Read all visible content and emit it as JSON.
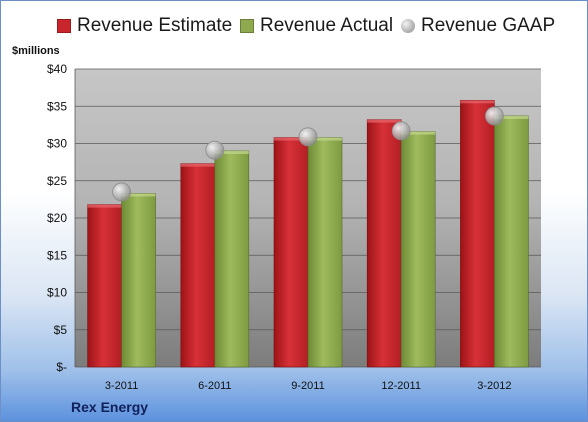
{
  "legend": {
    "estimate": "Revenue Estimate",
    "actual": "Revenue Actual",
    "gaap": "Revenue GAAP"
  },
  "ylabel": "$millions",
  "company": "Rex Energy",
  "colors": {
    "estimate": "#c8262c",
    "actual": "#8faa4e",
    "gaap": "#b5b5b5"
  },
  "chart_data": {
    "type": "bar",
    "categories": [
      "3-2011",
      "6-2011",
      "9-2011",
      "12-2011",
      "3-2012"
    ],
    "series": [
      {
        "name": "Revenue Estimate",
        "values": [
          21.8,
          27.3,
          30.8,
          33.2,
          35.8
        ]
      },
      {
        "name": "Revenue Actual",
        "values": [
          23.3,
          29.0,
          30.8,
          31.6,
          33.7
        ]
      },
      {
        "name": "Revenue GAAP",
        "values": [
          23.5,
          29.1,
          30.9,
          31.7,
          33.7
        ],
        "style": "marker"
      }
    ],
    "ylabel": "$millions",
    "ylim": [
      0,
      40
    ],
    "yticks": [
      0,
      5,
      10,
      15,
      20,
      25,
      30,
      35,
      40
    ],
    "ytick_labels": [
      "$-",
      "$5",
      "$10",
      "$15",
      "$20",
      "$25",
      "$30",
      "$35",
      "$40"
    ],
    "grid": true,
    "legend_position": "top"
  }
}
